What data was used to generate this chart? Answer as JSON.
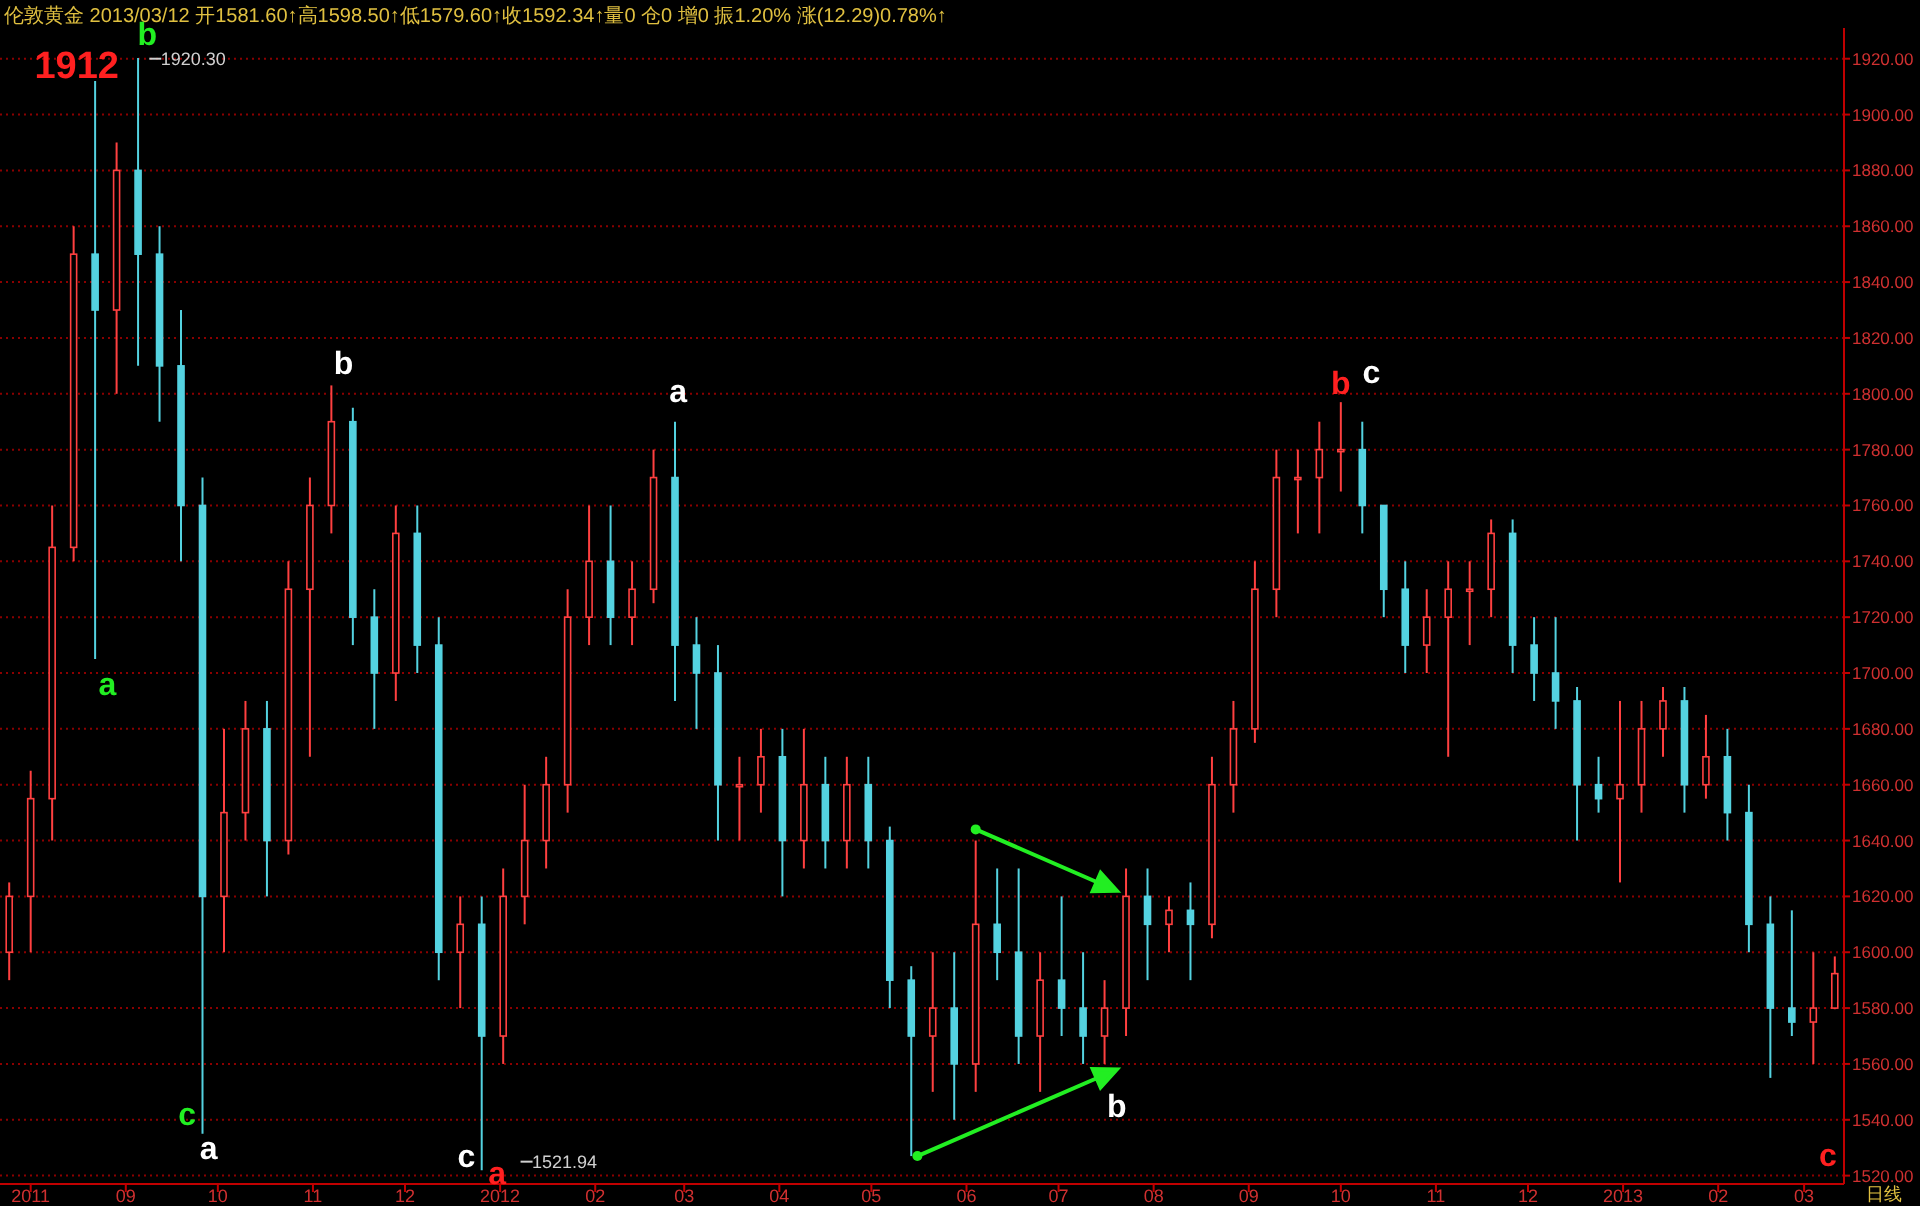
{
  "chart_data": {
    "type": "candlestick",
    "title": "伦敦黄金 2013/03/12 开1581.60↑高1598.50↑低1579.60↑收1592.34↑量0 仓0 增0 振1.20% 涨(12.29)0.78%↑",
    "x": [
      "2011-07-25",
      "2011-08-01",
      "2011-08-08",
      "2011-08-15",
      "2011-08-22",
      "2011-08-29",
      "2011-09-05",
      "2011-09-12",
      "2011-09-19",
      "2011-09-26",
      "2011-10-03",
      "2011-10-10",
      "2011-10-17",
      "2011-10-24",
      "2011-10-31",
      "2011-11-07",
      "2011-11-14",
      "2011-11-21",
      "2011-11-28",
      "2011-12-05",
      "2011-12-12",
      "2011-12-19",
      "2011-12-26",
      "2012-01-02",
      "2012-01-09",
      "2012-01-16",
      "2012-01-23",
      "2012-01-30",
      "2012-02-06",
      "2012-02-13",
      "2012-02-20",
      "2012-02-27",
      "2012-03-05",
      "2012-03-12",
      "2012-03-19",
      "2012-03-26",
      "2012-04-02",
      "2012-04-09",
      "2012-04-16",
      "2012-04-23",
      "2012-04-30",
      "2012-05-07",
      "2012-05-14",
      "2012-05-21",
      "2012-05-28",
      "2012-06-04",
      "2012-06-11",
      "2012-06-18",
      "2012-06-25",
      "2012-07-02",
      "2012-07-09",
      "2012-07-16",
      "2012-07-23",
      "2012-07-30",
      "2012-08-06",
      "2012-08-13",
      "2012-08-20",
      "2012-08-27",
      "2012-09-03",
      "2012-09-10",
      "2012-09-17",
      "2012-09-24",
      "2012-10-01",
      "2012-10-08",
      "2012-10-15",
      "2012-10-22",
      "2012-10-29",
      "2012-11-05",
      "2012-11-12",
      "2012-11-19",
      "2012-11-26",
      "2012-12-03",
      "2012-12-10",
      "2012-12-17",
      "2012-12-24",
      "2012-12-31",
      "2013-01-07",
      "2013-01-14",
      "2013-01-21",
      "2013-01-28",
      "2013-02-04",
      "2013-02-11",
      "2013-02-18",
      "2013-02-25",
      "2013-03-04",
      "2013-03-11"
    ],
    "ohlc": [
      [
        1600,
        1625,
        1590,
        1620
      ],
      [
        1620,
        1665,
        1600,
        1655
      ],
      [
        1655,
        1760,
        1640,
        1745
      ],
      [
        1745,
        1860,
        1740,
        1850
      ],
      [
        1850,
        1912,
        1705,
        1830
      ],
      [
        1830,
        1890,
        1800,
        1880
      ],
      [
        1880,
        1920.3,
        1810,
        1850
      ],
      [
        1850,
        1860,
        1790,
        1810
      ],
      [
        1810,
        1830,
        1740,
        1760
      ],
      [
        1760,
        1770,
        1535,
        1620
      ],
      [
        1620,
        1680,
        1600,
        1650
      ],
      [
        1650,
        1690,
        1640,
        1680
      ],
      [
        1680,
        1690,
        1620,
        1640
      ],
      [
        1640,
        1740,
        1635,
        1730
      ],
      [
        1730,
        1770,
        1670,
        1760
      ],
      [
        1760,
        1803,
        1750,
        1790
      ],
      [
        1790,
        1795,
        1710,
        1720
      ],
      [
        1720,
        1730,
        1680,
        1700
      ],
      [
        1700,
        1760,
        1690,
        1750
      ],
      [
        1750,
        1760,
        1700,
        1710
      ],
      [
        1710,
        1720,
        1590,
        1600
      ],
      [
        1600,
        1620,
        1580,
        1610
      ],
      [
        1610,
        1620,
        1521.94,
        1570
      ],
      [
        1570,
        1630,
        1560,
        1620
      ],
      [
        1620,
        1660,
        1610,
        1640
      ],
      [
        1640,
        1670,
        1630,
        1660
      ],
      [
        1660,
        1730,
        1650,
        1720
      ],
      [
        1720,
        1760,
        1710,
        1740
      ],
      [
        1740,
        1760,
        1710,
        1720
      ],
      [
        1720,
        1740,
        1710,
        1730
      ],
      [
        1730,
        1780,
        1725,
        1770
      ],
      [
        1770,
        1790,
        1690,
        1710
      ],
      [
        1710,
        1720,
        1680,
        1700
      ],
      [
        1700,
        1710,
        1640,
        1660
      ],
      [
        1660,
        1670,
        1640,
        1660
      ],
      [
        1660,
        1680,
        1650,
        1670
      ],
      [
        1670,
        1680,
        1620,
        1640
      ],
      [
        1640,
        1680,
        1630,
        1660
      ],
      [
        1660,
        1670,
        1630,
        1640
      ],
      [
        1640,
        1670,
        1630,
        1660
      ],
      [
        1660,
        1670,
        1630,
        1640
      ],
      [
        1640,
        1645,
        1580,
        1590
      ],
      [
        1590,
        1595,
        1527,
        1570
      ],
      [
        1570,
        1600,
        1550,
        1580
      ],
      [
        1580,
        1600,
        1540,
        1560
      ],
      [
        1560,
        1640,
        1550,
        1610
      ],
      [
        1610,
        1630,
        1590,
        1600
      ],
      [
        1600,
        1630,
        1560,
        1570
      ],
      [
        1570,
        1600,
        1550,
        1590
      ],
      [
        1590,
        1620,
        1570,
        1580
      ],
      [
        1580,
        1600,
        1560,
        1570
      ],
      [
        1570,
        1590,
        1560,
        1580
      ],
      [
        1580,
        1630,
        1570,
        1620
      ],
      [
        1620,
        1630,
        1590,
        1610
      ],
      [
        1610,
        1620,
        1600,
        1615
      ],
      [
        1615,
        1625,
        1590,
        1610
      ],
      [
        1610,
        1670,
        1605,
        1660
      ],
      [
        1660,
        1690,
        1650,
        1680
      ],
      [
        1680,
        1740,
        1675,
        1730
      ],
      [
        1730,
        1780,
        1720,
        1770
      ],
      [
        1770,
        1780,
        1750,
        1770
      ],
      [
        1770,
        1790,
        1750,
        1780
      ],
      [
        1780,
        1797,
        1765,
        1780
      ],
      [
        1780,
        1790,
        1750,
        1760
      ],
      [
        1760,
        1760,
        1720,
        1730
      ],
      [
        1730,
        1740,
        1700,
        1710
      ],
      [
        1710,
        1730,
        1700,
        1720
      ],
      [
        1720,
        1740,
        1670,
        1730
      ],
      [
        1730,
        1740,
        1710,
        1730
      ],
      [
        1730,
        1755,
        1720,
        1750
      ],
      [
        1750,
        1755,
        1700,
        1710
      ],
      [
        1710,
        1720,
        1690,
        1700
      ],
      [
        1700,
        1720,
        1680,
        1690
      ],
      [
        1690,
        1695,
        1640,
        1660
      ],
      [
        1660,
        1670,
        1650,
        1655
      ],
      [
        1655,
        1690,
        1625,
        1660
      ],
      [
        1660,
        1690,
        1650,
        1680
      ],
      [
        1680,
        1695,
        1670,
        1690
      ],
      [
        1690,
        1695,
        1650,
        1660
      ],
      [
        1660,
        1685,
        1655,
        1670
      ],
      [
        1670,
        1680,
        1640,
        1650
      ],
      [
        1650,
        1660,
        1600,
        1610
      ],
      [
        1610,
        1620,
        1555,
        1580
      ],
      [
        1580,
        1615,
        1570,
        1575
      ],
      [
        1575,
        1600,
        1560,
        1580
      ],
      [
        1580,
        1598.5,
        1579.6,
        1592.34
      ]
    ],
    "xlim": [
      "2011-07-22",
      "2013-03-14"
    ],
    "xticks": [
      {
        "value": "2011-08-01",
        "label": "2011"
      },
      {
        "value": "2011-09-01",
        "label": "09"
      },
      {
        "value": "2011-10-01",
        "label": "10"
      },
      {
        "value": "2011-11-01",
        "label": "11"
      },
      {
        "value": "2011-12-01",
        "label": "12"
      },
      {
        "value": "2012-01-01",
        "label": "2012"
      },
      {
        "value": "2012-02-01",
        "label": "02"
      },
      {
        "value": "2012-03-01",
        "label": "03"
      },
      {
        "value": "2012-04-01",
        "label": "04"
      },
      {
        "value": "2012-05-01",
        "label": "05"
      },
      {
        "value": "2012-06-01",
        "label": "06"
      },
      {
        "value": "2012-07-01",
        "label": "07"
      },
      {
        "value": "2012-08-01",
        "label": "08"
      },
      {
        "value": "2012-09-01",
        "label": "09"
      },
      {
        "value": "2012-10-01",
        "label": "10"
      },
      {
        "value": "2012-11-01",
        "label": "11"
      },
      {
        "value": "2012-12-01",
        "label": "12"
      },
      {
        "value": "2013-01-01",
        "label": "2013"
      },
      {
        "value": "2013-02-01",
        "label": "02"
      },
      {
        "value": "2013-03-01",
        "label": "03"
      }
    ],
    "ylim": [
      1517,
      1931
    ],
    "yticks": [
      {
        "value": 1520,
        "label": "1520.00"
      },
      {
        "value": 1540,
        "label": "1540.00"
      },
      {
        "value": 1560,
        "label": "1560.00"
      },
      {
        "value": 1580,
        "label": "1580.00"
      },
      {
        "value": 1600,
        "label": "1600.00"
      },
      {
        "value": 1620,
        "label": "1620.00"
      },
      {
        "value": 1640,
        "label": "1640.00"
      },
      {
        "value": 1660,
        "label": "1660.00"
      },
      {
        "value": 1680,
        "label": "1680.00"
      },
      {
        "value": 1700,
        "label": "1700.00"
      },
      {
        "value": 1720,
        "label": "1720.00"
      },
      {
        "value": 1740,
        "label": "1740.00"
      },
      {
        "value": 1760,
        "label": "1760.00"
      },
      {
        "value": 1780,
        "label": "1780.00"
      },
      {
        "value": 1800,
        "label": "1800.00"
      },
      {
        "value": 1820,
        "label": "1820.00"
      },
      {
        "value": 1840,
        "label": "1840.00"
      },
      {
        "value": 1860,
        "label": "1860.00"
      },
      {
        "value": 1880,
        "label": "1880.00"
      },
      {
        "value": 1900,
        "label": "1900.00"
      },
      {
        "value": 1920,
        "label": "1920.00"
      }
    ],
    "grid": "y",
    "annotations": [
      "1912",
      "b",
      "1920.30",
      "a",
      "c",
      "a",
      "b",
      "c",
      "a",
      "1521.94",
      "a",
      "b",
      "b",
      "c",
      "c",
      "日线"
    ]
  }
}
